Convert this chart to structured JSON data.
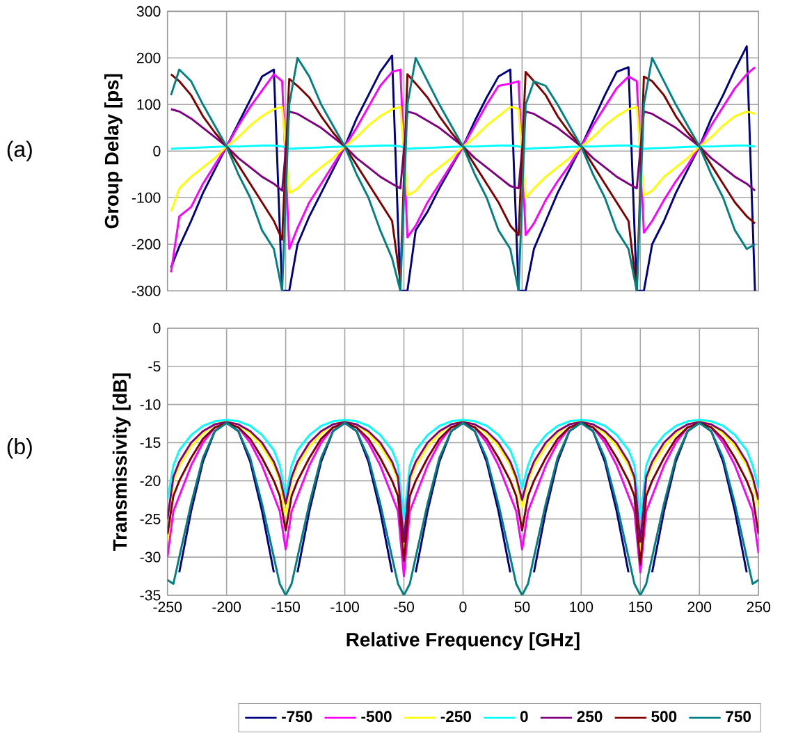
{
  "chart_data": [
    {
      "type": "line",
      "ylabel": "Group Delay [ps]",
      "annotations": [
        "(a)"
      ],
      "x": [
        -247,
        -240,
        -230,
        -220,
        -210,
        -200,
        -190,
        -180,
        -170,
        -160,
        -153,
        -147,
        -140,
        -130,
        -120,
        -110,
        -100,
        -90,
        -80,
        -70,
        -60,
        -53,
        -47,
        -40,
        -30,
        -20,
        -10,
        0,
        10,
        20,
        30,
        40,
        47,
        53,
        60,
        70,
        80,
        90,
        100,
        110,
        120,
        130,
        140,
        147,
        153,
        160,
        170,
        180,
        190,
        200,
        210,
        220,
        230,
        240,
        247
      ],
      "xlim": [
        -250,
        250
      ],
      "xticks": [
        -250,
        -200,
        -150,
        -100,
        -50,
        0,
        50,
        100,
        150,
        200,
        250
      ],
      "ylim": [
        -300,
        300
      ],
      "yticks": [
        -300,
        -200,
        -100,
        0,
        100,
        200,
        300
      ],
      "grid": true,
      "tick_labels": "y",
      "line_style": "solid",
      "marker": "none",
      "series": [
        {
          "color": "#000080",
          "values": [
            -250,
            -205,
            -150,
            -90,
            -40,
            10,
            60,
            110,
            160,
            175,
            -300,
            -300,
            -200,
            -140,
            -90,
            -40,
            10,
            70,
            120,
            170,
            205,
            -300,
            -300,
            -170,
            -130,
            -80,
            -35,
            10,
            65,
            115,
            160,
            175,
            -300,
            -300,
            -210,
            -150,
            -90,
            -40,
            10,
            65,
            120,
            170,
            180,
            -300,
            -300,
            -200,
            -150,
            -90,
            -40,
            10,
            70,
            120,
            175,
            225,
            -300
          ]
        },
        {
          "color": "#ff00ff",
          "values": [
            -260,
            -140,
            -120,
            -70,
            -30,
            10,
            55,
            95,
            130,
            165,
            150,
            -210,
            -165,
            -110,
            -70,
            -30,
            10,
            50,
            95,
            140,
            170,
            175,
            -185,
            -160,
            -110,
            -70,
            -30,
            10,
            55,
            100,
            140,
            145,
            150,
            -180,
            -155,
            -105,
            -65,
            -30,
            10,
            55,
            95,
            135,
            160,
            150,
            -175,
            -150,
            -105,
            -65,
            -30,
            10,
            55,
            95,
            135,
            165,
            180
          ]
        },
        {
          "color": "#ffff00",
          "values": [
            -130,
            -80,
            -55,
            -35,
            -15,
            10,
            30,
            55,
            75,
            90,
            95,
            -90,
            -80,
            -55,
            -35,
            -15,
            10,
            30,
            55,
            75,
            90,
            95,
            -95,
            -85,
            -55,
            -35,
            -15,
            10,
            30,
            55,
            75,
            95,
            90,
            -100,
            -80,
            -55,
            -35,
            -15,
            10,
            30,
            55,
            75,
            90,
            95,
            -95,
            -85,
            -55,
            -35,
            -15,
            10,
            30,
            55,
            75,
            85,
            80
          ]
        },
        {
          "color": "#00ffff",
          "values": [
            5,
            6,
            7,
            8,
            9,
            10,
            10,
            11,
            12,
            12,
            10,
            5,
            6,
            7,
            8,
            9,
            10,
            10,
            11,
            12,
            12,
            10,
            5,
            6,
            7,
            8,
            9,
            10,
            10,
            11,
            12,
            12,
            10,
            5,
            6,
            7,
            8,
            9,
            10,
            10,
            11,
            12,
            12,
            10,
            5,
            6,
            7,
            8,
            9,
            10,
            10,
            11,
            12,
            12,
            10
          ]
        },
        {
          "color": "#800080",
          "values": [
            90,
            85,
            70,
            50,
            30,
            10,
            -15,
            -35,
            -55,
            -70,
            -85,
            85,
            80,
            65,
            50,
            30,
            10,
            -15,
            -35,
            -55,
            -70,
            -80,
            85,
            80,
            65,
            50,
            30,
            10,
            -15,
            -35,
            -55,
            -75,
            -80,
            85,
            80,
            65,
            50,
            30,
            10,
            -15,
            -35,
            -55,
            -70,
            -80,
            85,
            80,
            65,
            50,
            30,
            10,
            -15,
            -35,
            -55,
            -70,
            -85
          ]
        },
        {
          "color": "#800000",
          "values": [
            165,
            150,
            120,
            75,
            40,
            10,
            -30,
            -70,
            -110,
            -150,
            -190,
            155,
            140,
            115,
            75,
            40,
            10,
            -30,
            -70,
            -110,
            -150,
            -280,
            165,
            145,
            115,
            75,
            40,
            10,
            -30,
            -70,
            -110,
            -160,
            -180,
            170,
            150,
            120,
            75,
            40,
            10,
            -30,
            -70,
            -110,
            -150,
            -300,
            160,
            150,
            120,
            75,
            40,
            10,
            -30,
            -70,
            -110,
            -140,
            -155
          ]
        },
        {
          "color": "#008080",
          "values": [
            120,
            175,
            150,
            100,
            55,
            10,
            -50,
            -100,
            -170,
            -210,
            -300,
            100,
            200,
            160,
            100,
            55,
            10,
            -50,
            -100,
            -170,
            -230,
            -300,
            100,
            200,
            150,
            100,
            55,
            10,
            -50,
            -100,
            -170,
            -210,
            -300,
            100,
            150,
            140,
            100,
            55,
            10,
            -50,
            -100,
            -170,
            -210,
            -300,
            100,
            200,
            150,
            100,
            55,
            10,
            -50,
            -100,
            -170,
            -210,
            -200
          ]
        }
      ]
    },
    {
      "type": "line",
      "xlabel": "Relative Frequency [GHz]",
      "ylabel": "Transmissivity [dB]",
      "annotations": [
        "(b)"
      ],
      "x": [
        -250,
        -245,
        -240,
        -230,
        -220,
        -210,
        -200,
        -190,
        -180,
        -170,
        -160,
        -155,
        -150,
        -145,
        -140,
        -130,
        -120,
        -110,
        -100,
        -90,
        -80,
        -70,
        -60,
        -55,
        -50,
        -45,
        -40,
        -30,
        -20,
        -10,
        0,
        10,
        20,
        30,
        40,
        45,
        50,
        55,
        60,
        70,
        80,
        90,
        100,
        110,
        120,
        130,
        140,
        145,
        150,
        155,
        160,
        170,
        180,
        190,
        200,
        210,
        220,
        230,
        240,
        245,
        250
      ],
      "xlim": [
        -250,
        250
      ],
      "xticks": [
        -250,
        -200,
        -150,
        -100,
        -50,
        0,
        50,
        100,
        150,
        200,
        250
      ],
      "ylim": [
        -35,
        0
      ],
      "yticks": [
        -35,
        -30,
        -25,
        -20,
        -15,
        -10,
        -5,
        0
      ],
      "grid": true,
      "legend": "bottom",
      "line_style": "solid",
      "marker": "none",
      "series": [
        {
          "name": "-750",
          "color": "#000080",
          "values": [
            null,
            null,
            -32,
            -24,
            -17.5,
            -13.5,
            -12.4,
            -13.5,
            -17.5,
            -24,
            -32,
            null,
            null,
            null,
            -32,
            -24,
            -17.5,
            -13.5,
            -12.4,
            -13.5,
            -17.5,
            -24,
            -32,
            null,
            null,
            null,
            -32,
            -24,
            -17.5,
            -13.5,
            -12.4,
            -13.5,
            -17.5,
            -24,
            -32,
            null,
            null,
            null,
            -32,
            -24,
            -17.5,
            -13.5,
            -12.4,
            -13.5,
            -17.5,
            -24,
            -32,
            null,
            null,
            null,
            -32,
            -24,
            -17.5,
            -13.5,
            -12.4,
            -13.5,
            -17.5,
            -24,
            -32,
            null,
            null
          ]
        },
        {
          "name": "-500",
          "color": "#ff00ff",
          "values": [
            -30,
            -24,
            -22,
            -18,
            -15,
            -13,
            -12.4,
            -13,
            -15,
            -18,
            -22,
            -24,
            -29,
            -24,
            -22,
            -18,
            -15,
            -13,
            -12.4,
            -13,
            -15,
            -18,
            -22,
            -24,
            -32.5,
            -24,
            -22,
            -18,
            -15,
            -13,
            -12.4,
            -13,
            -15,
            -18,
            -22,
            -24,
            -29,
            -24,
            -22,
            -18,
            -15,
            -13,
            -12.4,
            -13,
            -15,
            -18,
            -22,
            -24,
            -32,
            -24,
            -22,
            -18,
            -15,
            -13,
            -12.4,
            -13,
            -15,
            -18,
            -22,
            -24,
            -29.5
          ]
        },
        {
          "name": "-250",
          "color": "#ffff00",
          "values": [
            -28,
            -20,
            -18,
            -15.5,
            -13.8,
            -12.6,
            -12.2,
            -12.6,
            -13.8,
            -15.5,
            -18,
            -20,
            -24.5,
            -20,
            -18,
            -15.5,
            -13.8,
            -12.6,
            -12.2,
            -12.6,
            -13.8,
            -15.5,
            -18,
            -20,
            -29,
            -20,
            -18,
            -15.5,
            -13.8,
            -12.6,
            -12.2,
            -12.6,
            -13.8,
            -15.5,
            -18,
            -20,
            -23.5,
            -20,
            -18,
            -15.5,
            -13.8,
            -12.6,
            -12.2,
            -12.6,
            -13.8,
            -15.5,
            -18,
            -20,
            -29.5,
            -20,
            -18,
            -15.5,
            -13.8,
            -12.6,
            -12.2,
            -12.6,
            -13.8,
            -15.5,
            -18,
            -20,
            -23.5
          ]
        },
        {
          "name": "0",
          "color": "#00ffff",
          "values": [
            -22.5,
            -18,
            -16,
            -14,
            -12.8,
            -12.2,
            -12,
            -12.2,
            -12.8,
            -14,
            -16,
            -18,
            -22,
            -18,
            -16,
            -14,
            -12.8,
            -12.2,
            -12,
            -12.2,
            -12.8,
            -14,
            -16,
            -18,
            -25,
            -18,
            -16,
            -14,
            -12.8,
            -12.2,
            -12,
            -12.2,
            -12.8,
            -14,
            -16,
            -18,
            -21,
            -18,
            -16,
            -14,
            -12.8,
            -12.2,
            -12,
            -12.2,
            -12.8,
            -14,
            -16,
            -18,
            -25,
            -18,
            -16,
            -14,
            -12.8,
            -12.2,
            -12,
            -12.2,
            -12.8,
            -14,
            -16,
            -18,
            -21
          ]
        },
        {
          "name": "250",
          "color": "#800080",
          "values": [
            -25,
            -19.5,
            -17.5,
            -15,
            -13.5,
            -12.6,
            -12.3,
            -12.6,
            -13.5,
            -15,
            -17.5,
            -19.5,
            -23,
            -19.5,
            -17.5,
            -15,
            -13.5,
            -12.6,
            -12.3,
            -12.6,
            -13.5,
            -15,
            -17.5,
            -19.5,
            -28,
            -19.5,
            -17.5,
            -15,
            -13.5,
            -12.6,
            -12.3,
            -12.6,
            -13.5,
            -15,
            -17.5,
            -19.5,
            -22.5,
            -19.5,
            -17.5,
            -15,
            -13.5,
            -12.6,
            -12.3,
            -12.6,
            -13.5,
            -15,
            -17.5,
            -19.5,
            -28,
            -19.5,
            -17.5,
            -15,
            -13.5,
            -12.6,
            -12.3,
            -12.6,
            -13.5,
            -15,
            -17.5,
            -19.5,
            -22.5
          ]
        },
        {
          "name": "500",
          "color": "#800000",
          "values": [
            -27,
            -22,
            -20,
            -17,
            -14.5,
            -13,
            -12.4,
            -13,
            -14.5,
            -17,
            -20,
            -22,
            -26.5,
            -22,
            -20,
            -17,
            -14.5,
            -13,
            -12.4,
            -13,
            -14.5,
            -17,
            -20,
            -22,
            -30.5,
            -22,
            -20,
            -17,
            -14.5,
            -13,
            -12.4,
            -13,
            -14.5,
            -17,
            -20,
            -22,
            -26.5,
            -22,
            -20,
            -17,
            -14.5,
            -13,
            -12.4,
            -13,
            -14.5,
            -17,
            -20,
            -22,
            -31,
            -22,
            -20,
            -17,
            -14.5,
            -13,
            -12.4,
            -13,
            -14.5,
            -17,
            -20,
            -22,
            -27
          ]
        },
        {
          "name": "750",
          "color": "#008080",
          "values": [
            -33,
            -33.5,
            -30,
            -23,
            -17,
            -13.5,
            -12.4,
            -13.5,
            -17,
            -23,
            -30,
            -33.5,
            -35,
            -33.5,
            -30,
            -23,
            -17,
            -13.5,
            -12.4,
            -13.5,
            -17,
            -23,
            -30,
            -33.5,
            -35,
            -33.5,
            -30,
            -23,
            -17,
            -13.5,
            -12.4,
            -13.5,
            -17,
            -23,
            -30,
            -33.5,
            -35,
            -33.5,
            -30,
            -23,
            -17,
            -13.5,
            -12.4,
            -13.5,
            -17,
            -23,
            -30,
            -33.5,
            -35,
            -33.5,
            -30,
            -23,
            -17,
            -13.5,
            -12.4,
            -13.5,
            -17,
            -23,
            -30,
            -33.5,
            -33
          ]
        }
      ]
    }
  ]
}
